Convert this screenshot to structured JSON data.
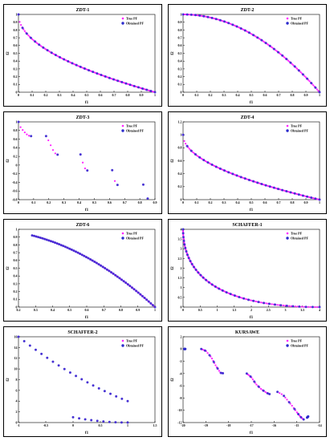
{
  "figure": {
    "colors": {
      "true_pf": "#ff22ff",
      "obtained_pf": "#2b2bcc",
      "axis": "#000000"
    },
    "legend": {
      "true_label": "True PF",
      "obtained_label": "Obtained PF",
      "placement": "top-right"
    }
  },
  "chart_data": [
    {
      "type": "scatter",
      "title": "ZDT-1",
      "xlabel": "f1",
      "ylabel": "f2",
      "xlim": [
        0,
        1
      ],
      "ylim": [
        0,
        1
      ],
      "xticks": [
        "0",
        "0.1",
        "0.2",
        "0.3",
        "0.4",
        "0.5",
        "0.6",
        "0.7",
        "0.8",
        "0.9",
        "1"
      ],
      "yticks": [
        "0",
        "0.1",
        "0.2",
        "0.3",
        "0.4",
        "0.5",
        "0.6",
        "0.7",
        "0.8",
        "0.9",
        "1"
      ],
      "curve": "zdt1",
      "segments": [
        [
          0,
          1
        ]
      ],
      "true_n": 110,
      "obtained_n": 34,
      "legend": [
        "True PF",
        "Obtained PF"
      ]
    },
    {
      "type": "scatter",
      "title": "ZDT-2",
      "xlabel": "f1",
      "ylabel": "f2",
      "xlim": [
        0,
        1
      ],
      "ylim": [
        0,
        1
      ],
      "xticks": [
        "0",
        "0.1",
        "0.2",
        "0.3",
        "0.4",
        "0.5",
        "0.6",
        "0.7",
        "0.8",
        "0.9",
        "1"
      ],
      "yticks": [
        "0",
        "0.1",
        "0.2",
        "0.3",
        "0.4",
        "0.5",
        "0.6",
        "0.7",
        "0.8",
        "0.9",
        "1"
      ],
      "curve": "zdt2",
      "segments": [
        [
          0,
          1
        ]
      ],
      "true_n": 110,
      "obtained_n": 34,
      "legend": [
        "True PF",
        "Obtained PF"
      ]
    },
    {
      "type": "scatter",
      "title": "ZDT-3",
      "xlabel": "f1",
      "ylabel": "f2",
      "xlim": [
        0,
        0.9
      ],
      "ylim": [
        -0.8,
        1
      ],
      "xticks": [
        "0",
        "0.1",
        "0.2",
        "0.3",
        "0.4",
        "0.5",
        "0.6",
        "0.7",
        "0.8",
        "0.9"
      ],
      "yticks": [
        "-0.8",
        "-0.6",
        "-0.4",
        "-0.2",
        "0",
        "0.2",
        "0.4",
        "0.6",
        "0.8",
        "1"
      ],
      "curve": "zdt3",
      "segments": [
        [
          0,
          0.083
        ],
        [
          0.182,
          0.258
        ],
        [
          0.409,
          0.454
        ],
        [
          0.618,
          0.653
        ],
        [
          0.823,
          0.852
        ]
      ],
      "true_n": 22,
      "obtained_n": 8,
      "legend": [
        "True PF",
        "Obtained PF"
      ]
    },
    {
      "type": "scatter",
      "title": "ZDT-4",
      "xlabel": "f1",
      "ylabel": "f2",
      "xlim": [
        0,
        1
      ],
      "ylim": [
        0,
        1.2
      ],
      "xticks": [
        "0",
        "0.1",
        "0.2",
        "0.3",
        "0.4",
        "0.5",
        "0.6",
        "0.7",
        "0.8",
        "0.9",
        "1"
      ],
      "yticks": [
        "0",
        "0.2",
        "0.4",
        "0.6",
        "0.8",
        "1",
        "1.2"
      ],
      "curve": "zdt1",
      "segments": [
        [
          0,
          1
        ]
      ],
      "true_n": 110,
      "obtained_n": 34,
      "legend": [
        "True PF",
        "Obtained PF"
      ]
    },
    {
      "type": "scatter",
      "title": "ZDT-6",
      "xlabel": "f1",
      "ylabel": "f2",
      "xlim": [
        0.2,
        1
      ],
      "ylim": [
        0,
        1
      ],
      "xticks": [
        "0.2",
        "0.3",
        "0.4",
        "0.5",
        "0.6",
        "0.7",
        "0.8",
        "0.9",
        "1"
      ],
      "yticks": [
        "0",
        "0.1",
        "0.2",
        "0.3",
        "0.4",
        "0.5",
        "0.6",
        "0.7",
        "0.8",
        "0.9",
        "1"
      ],
      "curve": "zdt2",
      "segments": [
        [
          0.28,
          1
        ]
      ],
      "true_n": 90,
      "obtained_n": 60,
      "legend": [
        "True PF",
        "Obtained PF"
      ]
    },
    {
      "type": "scatter",
      "title": "SCHAFFER-1",
      "xlabel": "f1",
      "ylabel": "f2",
      "xlim": [
        0,
        4
      ],
      "ylim": [
        0,
        4
      ],
      "xticks": [
        "0",
        "0.5",
        "1",
        "1.5",
        "2",
        "2.5",
        "3",
        "3.5",
        "4"
      ],
      "yticks": [
        "0",
        "0.5",
        "1",
        "1.5",
        "2",
        "2.5",
        "3",
        "3.5",
        "4"
      ],
      "curve": "sch1",
      "segments": [
        [
          0,
          1
        ]
      ],
      "true_n": 120,
      "obtained_n": 40,
      "legend": [
        "True PF",
        "Obtained PF"
      ]
    },
    {
      "type": "scatter",
      "title": "SCHAFFER-2",
      "xlabel": "f1",
      "ylabel": "f2",
      "xlim": [
        -1,
        1.5
      ],
      "ylim": [
        0,
        16
      ],
      "xticks": [
        "-1",
        "-0.5",
        "0",
        "0.5",
        "1",
        "1.5"
      ],
      "yticks": [
        "0",
        "2",
        "4",
        "6",
        "8",
        "10",
        "12",
        "14",
        "16"
      ],
      "curve": "sch2",
      "segments": [
        [
          1,
          3
        ],
        [
          4,
          5
        ]
      ],
      "true_n": 30,
      "obtained_n": 30,
      "legend": [
        "True PF",
        "Obtained PF"
      ]
    },
    {
      "type": "scatter",
      "title": "KURSAWE",
      "xlabel": "f1",
      "ylabel": "f2",
      "xlim": [
        -20,
        -14
      ],
      "ylim": [
        -12,
        2
      ],
      "xticks": [
        "-20",
        "-19",
        "-18",
        "-17",
        "-16",
        "-15",
        "-14"
      ],
      "yticks": [
        "-12",
        "-10",
        "-8",
        "-6",
        "-4",
        "-2",
        "0",
        "2"
      ],
      "curve": "polyline",
      "pieces": [
        [
          [
            -19.95,
            0
          ],
          [
            -19.9,
            0
          ]
        ],
        [
          [
            -19.2,
            0
          ],
          [
            -19.0,
            -0.3
          ],
          [
            -18.75,
            -1.4
          ],
          [
            -18.55,
            -2.8
          ],
          [
            -18.35,
            -3.9
          ],
          [
            -18.25,
            -3.95
          ]
        ],
        [
          [
            -17.2,
            -4.0
          ],
          [
            -17.0,
            -4.6
          ],
          [
            -16.8,
            -5.7
          ],
          [
            -16.55,
            -6.6
          ],
          [
            -16.3,
            -7.2
          ],
          [
            -16.2,
            -7.35
          ]
        ],
        [
          [
            -15.85,
            -7.0
          ],
          [
            -15.6,
            -7.5
          ],
          [
            -15.4,
            -8.4
          ],
          [
            -15.2,
            -9.3
          ],
          [
            -15.0,
            -10.3
          ],
          [
            -14.9,
            -10.8
          ],
          [
            -14.8,
            -11.2
          ],
          [
            -14.7,
            -11.5
          ]
        ],
        [
          [
            -14.55,
            -11.2
          ],
          [
            -14.5,
            -11.0
          ]
        ]
      ],
      "true_n": 100,
      "obtained_n": 36,
      "legend": [
        "True PF",
        "Obtained PF"
      ]
    }
  ]
}
